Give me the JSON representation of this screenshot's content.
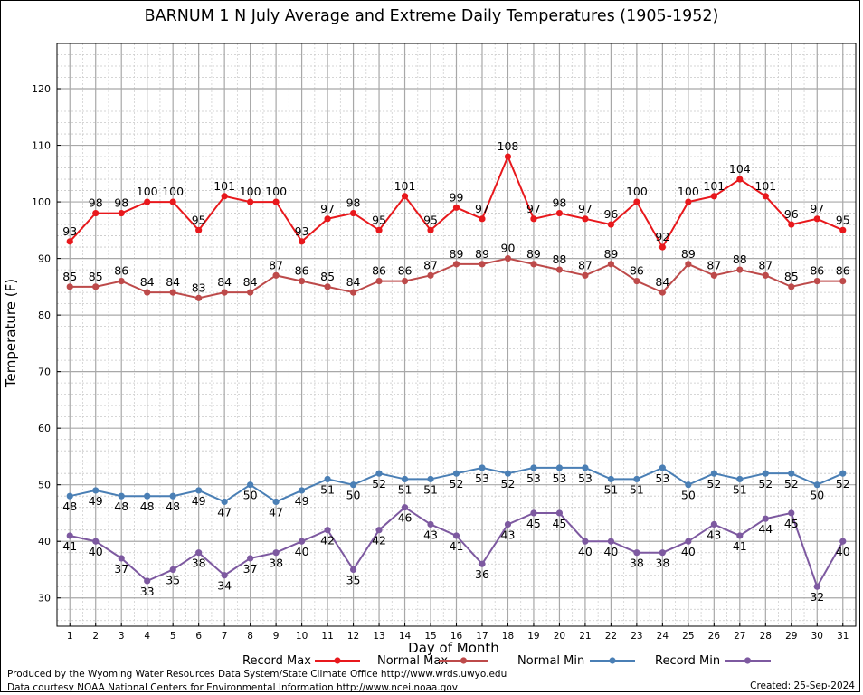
{
  "chart_data": {
    "type": "line",
    "title": "BARNUM 1 N July Average and Extreme Daily Temperatures (1905-1952)",
    "xlabel": "Day of Month",
    "ylabel": "Temperature (F)",
    "xlim": [
      0.5,
      31.5
    ],
    "ylim": [
      25,
      128
    ],
    "yticks": [
      30,
      40,
      50,
      60,
      70,
      80,
      90,
      100,
      110,
      120
    ],
    "x": [
      1,
      2,
      3,
      4,
      5,
      6,
      7,
      8,
      9,
      10,
      11,
      12,
      13,
      14,
      15,
      16,
      17,
      18,
      19,
      20,
      21,
      22,
      23,
      24,
      25,
      26,
      27,
      28,
      29,
      30,
      31
    ],
    "grid": true,
    "legend_position": "bottom",
    "series": [
      {
        "name": "Record Max",
        "color": "#e8181c",
        "label_side": "above",
        "values": [
          93,
          98,
          98,
          100,
          100,
          95,
          101,
          100,
          100,
          93,
          97,
          98,
          95,
          101,
          95,
          99,
          97,
          108,
          97,
          98,
          97,
          96,
          100,
          92,
          100,
          101,
          104,
          101,
          96,
          97,
          95
        ]
      },
      {
        "name": "Normal Max",
        "color": "#bd4a4a",
        "label_side": "above",
        "values": [
          85,
          85,
          86,
          84,
          84,
          83,
          84,
          84,
          87,
          86,
          85,
          84,
          86,
          86,
          87,
          89,
          89,
          90,
          89,
          88,
          87,
          89,
          86,
          84,
          89,
          87,
          88,
          87,
          85,
          86,
          86
        ]
      },
      {
        "name": "Normal Min",
        "color": "#4a7fb5",
        "label_side": "below",
        "values": [
          48,
          49,
          48,
          48,
          48,
          49,
          47,
          50,
          47,
          49,
          51,
          50,
          52,
          51,
          51,
          52,
          53,
          52,
          53,
          53,
          53,
          51,
          51,
          53,
          50,
          52,
          51,
          52,
          52,
          50,
          52
        ]
      },
      {
        "name": "Record Min",
        "color": "#7d59a0",
        "label_side": "below",
        "values": [
          41,
          40,
          37,
          33,
          35,
          38,
          34,
          37,
          38,
          40,
          42,
          35,
          42,
          46,
          43,
          41,
          36,
          43,
          45,
          45,
          40,
          40,
          38,
          38,
          40,
          43,
          41,
          44,
          45,
          32,
          40
        ]
      }
    ]
  },
  "footer": {
    "produced_by": "Produced by the Wyoming Water Resources Data System/State Climate Office http://www.wrds.uwyo.edu",
    "courtesy": "Data courtesy NOAA National Centers for Environmental Information http://www.ncei.noaa.gov",
    "created": "Created:  25-Sep-2024"
  }
}
